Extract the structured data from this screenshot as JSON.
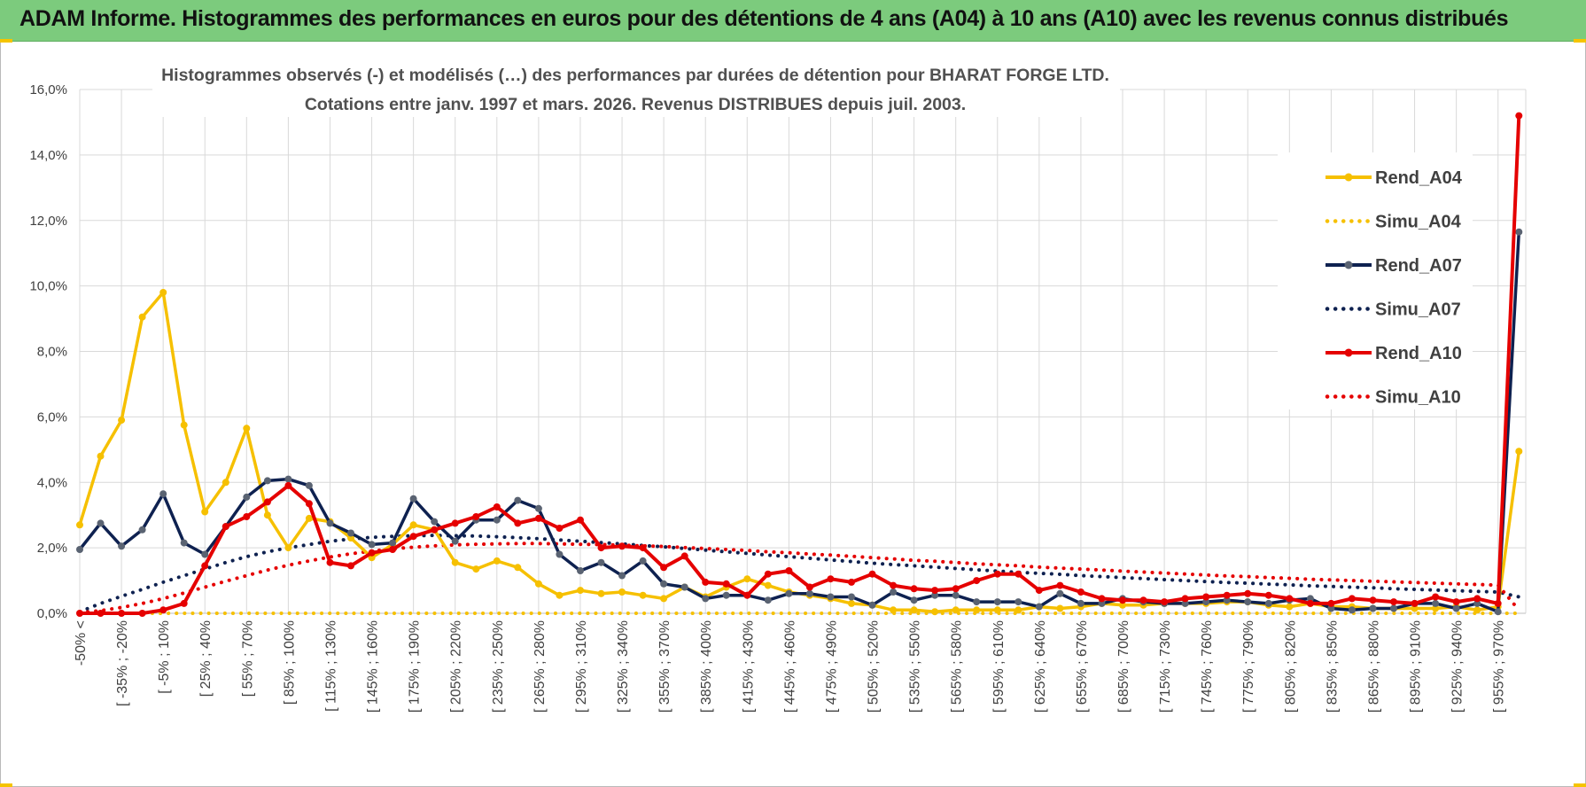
{
  "header": {
    "title": "ADAM Informe. Histogrammes des performances en euros pour des détentions de 4 ans (A04) à 10 ans (A10) avec les revenus connus distribués"
  },
  "chart_data": {
    "type": "line",
    "title": "Histogrammes observés (-) et modélisés (…) des performances par durées de détention pour BHARAT FORGE LTD.",
    "subtitle": "Cotations entre janv. 1997 et mars. 2026.  Revenus DISTRIBUES depuis juil. 2003.",
    "ylim": [
      0,
      16
    ],
    "yticks": [
      "0,0%",
      "2,0%",
      "4,0%",
      "6,0%",
      "8,0%",
      "10,0%",
      "12,0%",
      "14,0%",
      "16,0%"
    ],
    "x_tick_labels": [
      "-50% <",
      "[ -35% ; -20%",
      "[ -5% ; 10%",
      "[ 25% ; 40%",
      "[ 55% ; 70%",
      "[ 85% ; 100%",
      "[ 115% ; 130%",
      "[ 145% ; 160%",
      "[ 175% ; 190%",
      "[ 205% ; 220%",
      "[ 235% ; 250%",
      "[ 265% ; 280%",
      "[ 295% ; 310%",
      "[ 325% ; 340%",
      "[ 355% ; 370%",
      "[ 385% ; 400%",
      "[ 415% ; 430%",
      "[ 445% ; 460%",
      "[ 475% ; 490%",
      "[ 505% ; 520%",
      "[ 535% ; 550%",
      "[ 565% ; 580%",
      "[ 595% ; 610%",
      "[ 625% ; 640%",
      "[ 655% ; 670%",
      "[ 685% ; 700%",
      "[ 715% ; 730%",
      "[ 745% ; 760%",
      "[ 775% ; 790%",
      "[ 805% ; 820%",
      "[ 835% ; 850%",
      "[ 865% ; 880%",
      "[ 895% ; 910%",
      "[ 925% ; 940%",
      "[ 955% ; 970%"
    ],
    "n_points": 70,
    "series": [
      {
        "name": "Rend_A04",
        "color": "#f6c000",
        "style": "solid",
        "values": [
          2.7,
          4.8,
          5.9,
          9.05,
          9.8,
          5.75,
          3.1,
          4.0,
          5.65,
          3.0,
          2.0,
          2.9,
          2.8,
          2.3,
          1.7,
          2.1,
          2.7,
          2.55,
          1.55,
          1.35,
          1.6,
          1.4,
          0.9,
          0.55,
          0.7,
          0.6,
          0.65,
          0.55,
          0.45,
          0.8,
          0.5,
          0.8,
          1.05,
          0.85,
          0.65,
          0.55,
          0.45,
          0.3,
          0.25,
          0.1,
          0.1,
          0.05,
          0.1,
          0.1,
          0.1,
          0.1,
          0.2,
          0.15,
          0.2,
          0.3,
          0.25,
          0.25,
          0.3,
          0.3,
          0.3,
          0.35,
          0.35,
          0.25,
          0.2,
          0.3,
          0.2,
          0.2,
          0.15,
          0.15,
          0.15,
          0.15,
          0.2,
          0.1,
          0.2,
          4.95
        ]
      },
      {
        "name": "Simu_A04",
        "color": "#f6c000",
        "style": "dotted",
        "values": [
          0,
          0,
          0,
          0,
          0,
          0,
          0,
          0,
          0,
          0,
          0,
          0,
          0,
          0,
          0,
          0,
          0,
          0,
          0,
          0,
          0,
          0,
          0,
          0,
          0,
          0,
          0,
          0,
          0,
          0,
          0,
          0,
          0,
          0,
          0,
          0,
          0,
          0,
          0,
          0,
          0,
          0,
          0,
          0,
          0,
          0,
          0,
          0,
          0,
          0,
          0,
          0,
          0,
          0,
          0,
          0,
          0,
          0,
          0,
          0,
          0,
          0,
          0,
          0,
          0,
          0,
          0,
          0,
          0,
          0
        ]
      },
      {
        "name": "Rend_A07",
        "color": "#0e2150",
        "style": "solid",
        "values": [
          1.95,
          2.75,
          2.05,
          2.55,
          3.65,
          2.15,
          1.8,
          2.65,
          3.55,
          4.05,
          4.1,
          3.9,
          2.75,
          2.45,
          2.1,
          2.15,
          3.5,
          2.8,
          2.2,
          2.85,
          2.85,
          3.45,
          3.2,
          1.8,
          1.3,
          1.55,
          1.15,
          1.6,
          0.9,
          0.8,
          0.45,
          0.55,
          0.55,
          0.4,
          0.6,
          0.6,
          0.5,
          0.5,
          0.25,
          0.65,
          0.4,
          0.55,
          0.55,
          0.35,
          0.35,
          0.35,
          0.2,
          0.6,
          0.3,
          0.3,
          0.45,
          0.35,
          0.3,
          0.3,
          0.35,
          0.4,
          0.35,
          0.3,
          0.4,
          0.45,
          0.15,
          0.1,
          0.15,
          0.15,
          0.3,
          0.3,
          0.15,
          0.3,
          0.05,
          11.65
        ]
      },
      {
        "name": "Simu_A07",
        "color": "#0e2150",
        "style": "dotted",
        "values": [
          0.05,
          0.3,
          0.52,
          0.73,
          0.95,
          1.15,
          1.35,
          1.55,
          1.73,
          1.88,
          2.0,
          2.1,
          2.2,
          2.27,
          2.32,
          2.35,
          2.37,
          2.38,
          2.37,
          2.36,
          2.34,
          2.31,
          2.28,
          2.24,
          2.2,
          2.16,
          2.12,
          2.07,
          2.03,
          1.98,
          1.93,
          1.88,
          1.83,
          1.78,
          1.73,
          1.68,
          1.63,
          1.58,
          1.53,
          1.49,
          1.45,
          1.41,
          1.37,
          1.33,
          1.29,
          1.25,
          1.22,
          1.19,
          1.15,
          1.12,
          1.09,
          1.06,
          1.03,
          1.0,
          0.97,
          0.94,
          0.92,
          0.89,
          0.87,
          0.84,
          0.82,
          0.8,
          0.78,
          0.75,
          0.73,
          0.71,
          0.69,
          0.67,
          0.65,
          0.5
        ]
      },
      {
        "name": "Rend_A10",
        "color": "#e50000",
        "style": "solid",
        "values": [
          0.0,
          0.0,
          0.0,
          0.0,
          0.1,
          0.3,
          1.45,
          2.65,
          2.95,
          3.4,
          3.9,
          3.35,
          1.55,
          1.45,
          1.85,
          1.95,
          2.35,
          2.55,
          2.75,
          2.95,
          3.25,
          2.75,
          2.9,
          2.6,
          2.85,
          2.0,
          2.05,
          2.0,
          1.4,
          1.75,
          0.95,
          0.9,
          0.55,
          1.2,
          1.3,
          0.8,
          1.05,
          0.95,
          1.2,
          0.85,
          0.75,
          0.7,
          0.75,
          1.0,
          1.2,
          1.2,
          0.7,
          0.85,
          0.65,
          0.45,
          0.4,
          0.4,
          0.35,
          0.45,
          0.5,
          0.55,
          0.6,
          0.55,
          0.45,
          0.3,
          0.3,
          0.45,
          0.4,
          0.35,
          0.3,
          0.5,
          0.35,
          0.45,
          0.3,
          15.2
        ]
      },
      {
        "name": "Simu_A10",
        "color": "#e50000",
        "style": "dotted",
        "values": [
          0.02,
          0.08,
          0.18,
          0.3,
          0.45,
          0.62,
          0.8,
          0.98,
          1.15,
          1.32,
          1.47,
          1.6,
          1.72,
          1.82,
          1.9,
          1.97,
          2.02,
          2.06,
          2.09,
          2.11,
          2.12,
          2.13,
          2.13,
          2.12,
          2.11,
          2.1,
          2.08,
          2.06,
          2.04,
          2.01,
          1.98,
          1.95,
          1.92,
          1.88,
          1.85,
          1.81,
          1.78,
          1.74,
          1.7,
          1.66,
          1.62,
          1.59,
          1.55,
          1.51,
          1.48,
          1.45,
          1.41,
          1.38,
          1.35,
          1.32,
          1.29,
          1.26,
          1.23,
          1.2,
          1.17,
          1.14,
          1.12,
          1.09,
          1.07,
          1.04,
          1.02,
          1.0,
          0.98,
          0.96,
          0.94,
          0.92,
          0.9,
          0.88,
          0.86,
          0.1
        ]
      }
    ],
    "legend": [
      "Rend_A04",
      "Simu_A04",
      "Rend_A07",
      "Simu_A07",
      "Rend_A10",
      "Simu_A10"
    ],
    "legend_position": "right",
    "grid": true
  }
}
